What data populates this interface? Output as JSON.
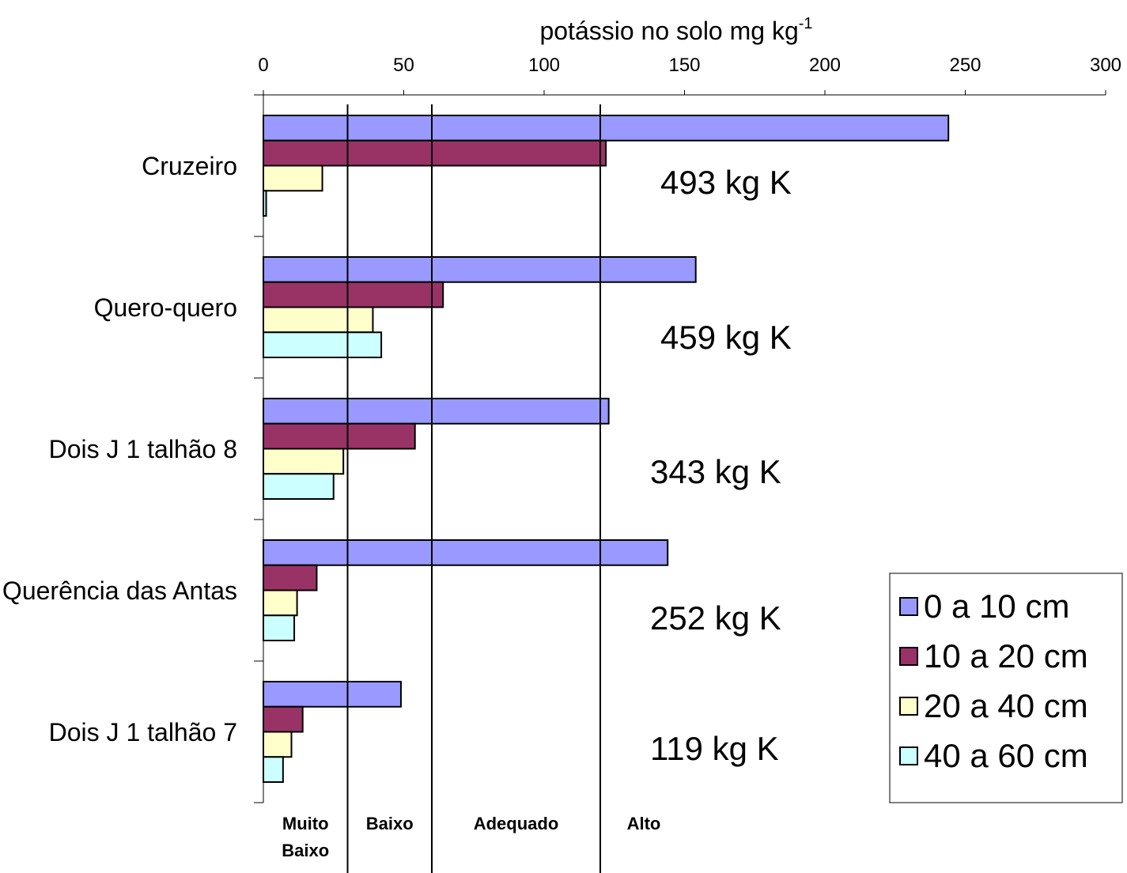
{
  "chart_data": {
    "type": "bar",
    "orientation": "horizontal",
    "xlabel": "potássio no solo mg kg",
    "xlabel_superscript": "-1",
    "categories": [
      "Cruzeiro",
      "Quero-quero",
      "Dois J 1 talhão 8",
      "Querência das Antas",
      "Dois J 1 talhão 7"
    ],
    "series": [
      {
        "name": "0 a 10 cm",
        "color": "#9999ff",
        "values": [
          244,
          154,
          123,
          144,
          49
        ]
      },
      {
        "name": "10 a 20 cm",
        "color": "#993366",
        "values": [
          122,
          64,
          54,
          19,
          14
        ]
      },
      {
        "name": "20 a 40 cm",
        "color": "#ffffcc",
        "values": [
          21,
          39,
          28.5,
          12,
          10
        ]
      },
      {
        "name": "40 a 60 cm",
        "color": "#ccffff",
        "values": [
          1,
          42,
          25,
          11,
          7
        ]
      }
    ],
    "annotations": [
      "493 kg K",
      "459 kg K",
      "343 kg K",
      "252 kg K",
      "119 kg K"
    ],
    "xlim": [
      0,
      300
    ],
    "xticks": [
      0,
      50,
      100,
      150,
      200,
      250,
      300
    ],
    "class_limits": [
      30,
      60,
      120
    ],
    "class_labels": [
      "Muito Baixo",
      "Baixo",
      "Adequado",
      "Alto"
    ],
    "legend": "bottom-right"
  }
}
